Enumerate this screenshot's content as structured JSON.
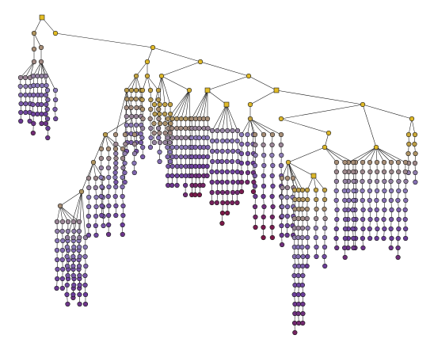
{
  "diagram": {
    "type": "tree",
    "node_shapes": [
      "square",
      "circle"
    ],
    "color_scale": [
      "#e8c020",
      "#b89a4a",
      "#8a7ab8",
      "#6a3c9a",
      "#7a1848"
    ],
    "edge_color": "#111111",
    "background": "#ffffff"
  }
}
